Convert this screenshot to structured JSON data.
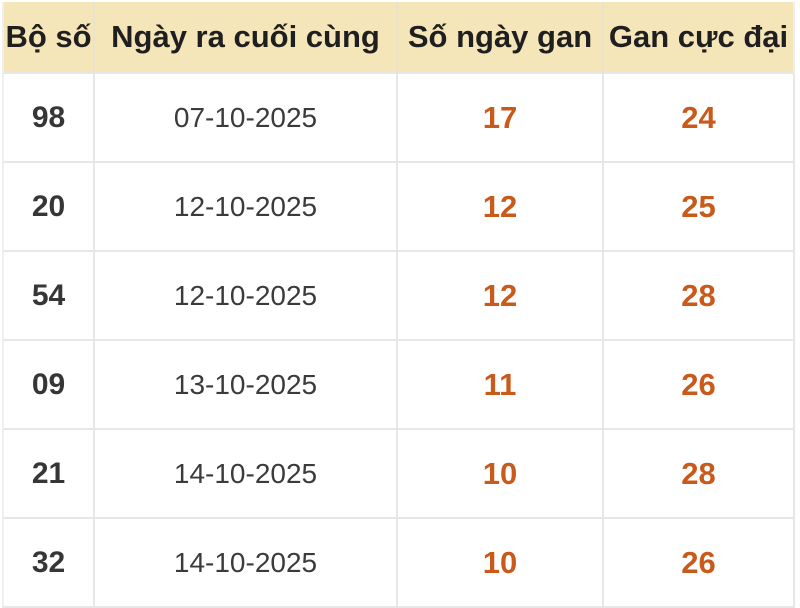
{
  "table": {
    "columns": [
      {
        "label": "Bộ số"
      },
      {
        "label": "Ngày ra cuối cùng"
      },
      {
        "label": "Số ngày gan"
      },
      {
        "label": "Gan cực đại"
      }
    ],
    "rows": [
      [
        "98",
        "07-10-2025",
        "17",
        "24"
      ],
      [
        "20",
        "12-10-2025",
        "12",
        "25"
      ],
      [
        "54",
        "12-10-2025",
        "12",
        "28"
      ],
      [
        "09",
        "13-10-2025",
        "11",
        "26"
      ],
      [
        "21",
        "14-10-2025",
        "10",
        "28"
      ],
      [
        "32",
        "14-10-2025",
        "10",
        "26"
      ]
    ],
    "colors": {
      "header_bg": "#f5e6ba",
      "header_text": "#1f1f1f",
      "grid": "#e7e7e7",
      "body_text": "#363636",
      "gan_value": "#c85a1b"
    }
  }
}
